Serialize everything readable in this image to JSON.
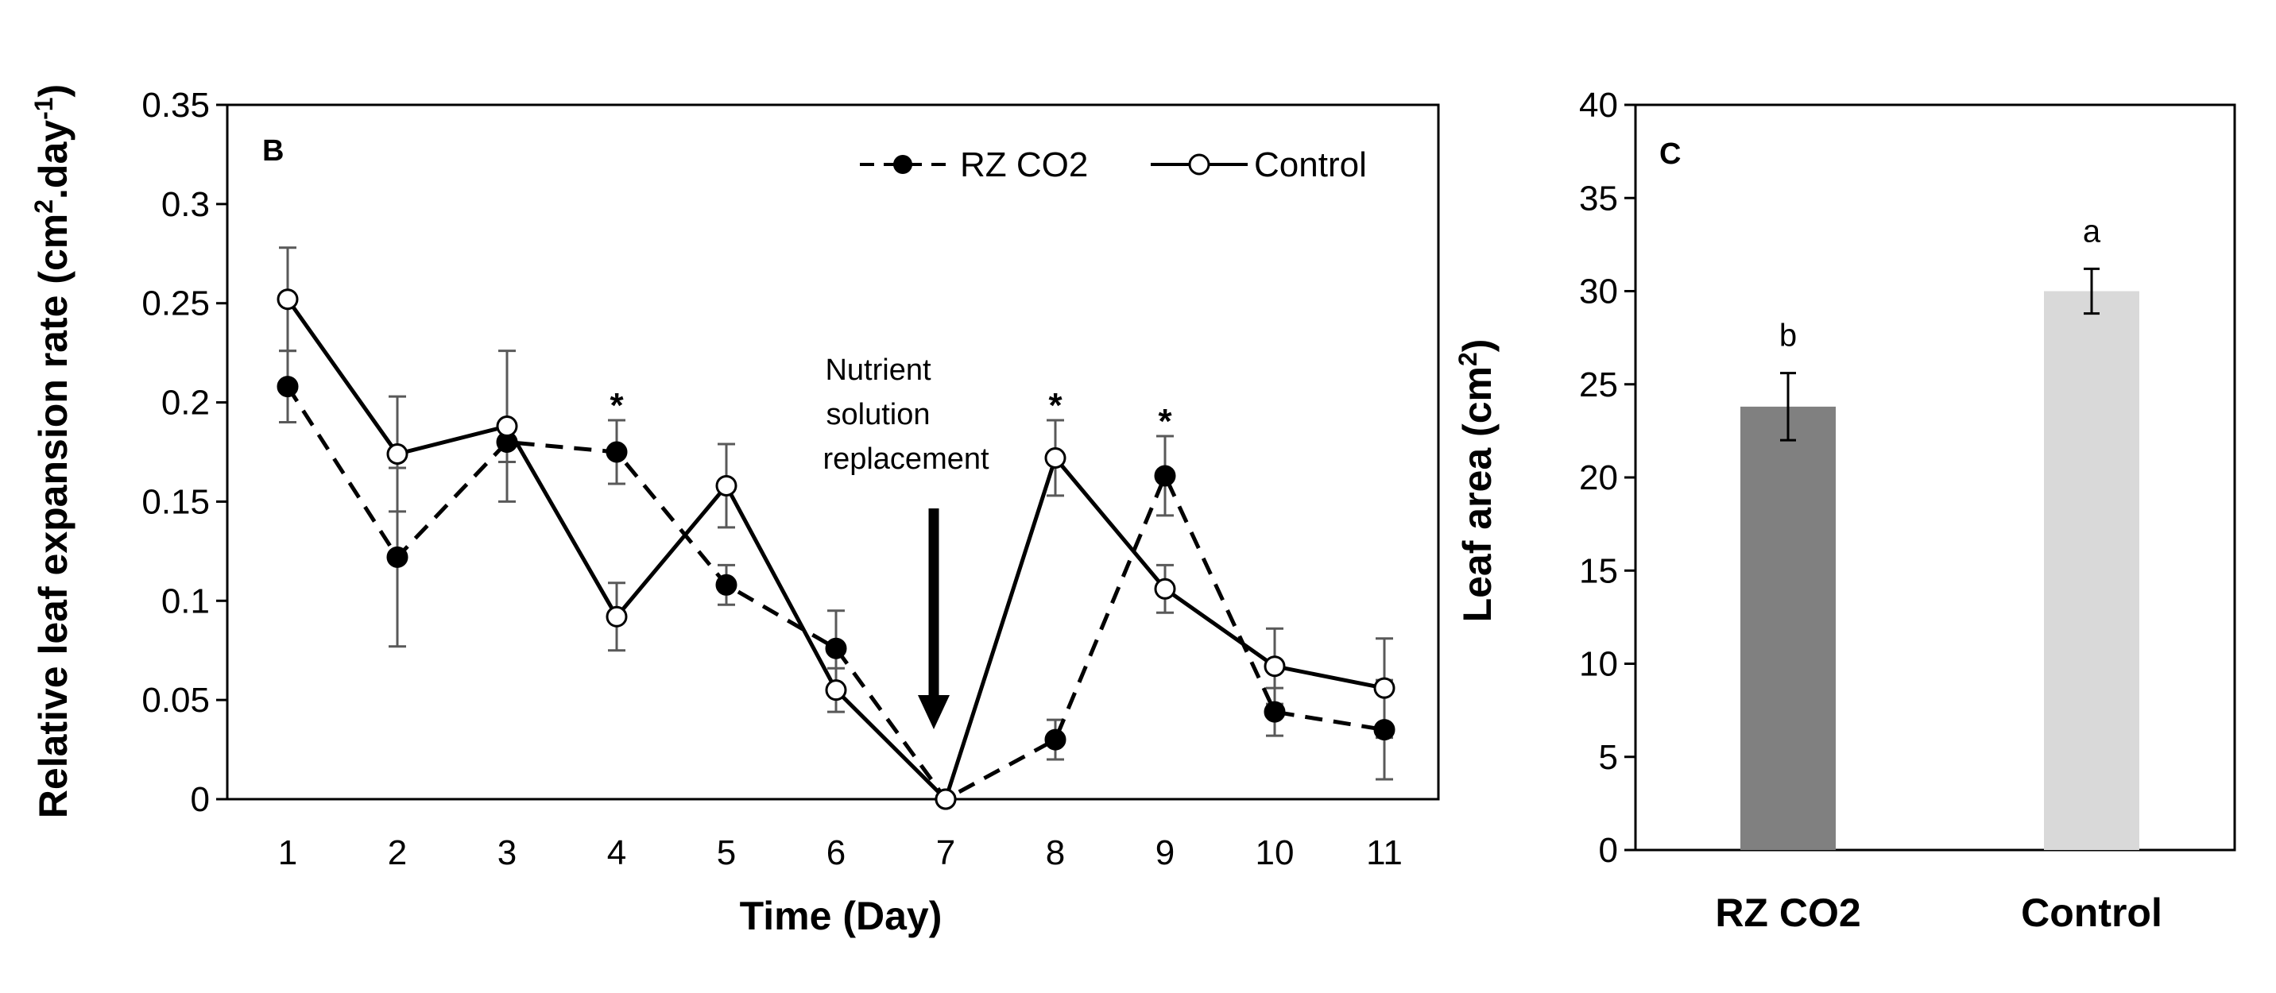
{
  "chart_data": [
    {
      "panel": "B",
      "type": "line",
      "ylabel": "Relative leaf expansion rate (cm2.day-1)",
      "ylabel_main": "Relative leaf expansion rate (cm",
      "ylabel_unit_mid": ".day",
      "ylabel_sup1": "2",
      "ylabel_sup2": "-1",
      "ylabel_close": ")",
      "xlabel": "Time (Day)",
      "ylim": [
        0,
        0.35
      ],
      "yticks": [
        "0",
        "0.05",
        "0.1",
        "0.15",
        "0.2",
        "0.25",
        "0.3",
        "0.35"
      ],
      "ytick_values": [
        0,
        0.05,
        0.1,
        0.15,
        0.2,
        0.25,
        0.3,
        0.35
      ],
      "x": [
        1,
        2,
        3,
        4,
        5,
        6,
        7,
        8,
        9,
        10,
        11
      ],
      "xticks": [
        "1",
        "2",
        "3",
        "4",
        "5",
        "6",
        "7",
        "8",
        "9",
        "10",
        "11"
      ],
      "legend_position": "top-right",
      "series": [
        {
          "name": "RZ CO2",
          "style": "dashed",
          "marker": "filled-circle",
          "values": [
            0.208,
            0.122,
            0.18,
            0.175,
            0.108,
            0.076,
            0.0,
            0.03,
            0.163,
            0.044,
            0.035
          ],
          "errors": [
            0.018,
            0.045,
            0.01,
            0.016,
            0.01,
            0.019,
            0.0,
            0.01,
            0.02,
            0.012,
            0.025
          ]
        },
        {
          "name": "Control",
          "style": "solid",
          "marker": "open-circle",
          "values": [
            0.252,
            0.174,
            0.188,
            0.092,
            0.158,
            0.055,
            0.0,
            0.172,
            0.106,
            0.067,
            0.056
          ],
          "errors": [
            0.026,
            0.029,
            0.038,
            0.017,
            0.021,
            0.011,
            0.0,
            0.019,
            0.012,
            0.019,
            0.025
          ]
        }
      ],
      "significance_days": [
        4,
        8,
        9
      ],
      "significance_mark": "*",
      "annotation": {
        "lines": [
          "Nutrient",
          "solution",
          "replacement"
        ],
        "arrow_day": 7
      }
    },
    {
      "panel": "C",
      "type": "bar",
      "ylabel": "Leaf area (cm2)",
      "ylabel_main": "Leaf area (cm",
      "ylabel_sup": "2",
      "ylabel_close": ")",
      "ylim": [
        0,
        40
      ],
      "yticks": [
        "0",
        "5",
        "10",
        "15",
        "20",
        "25",
        "30",
        "35",
        "40"
      ],
      "ytick_values": [
        0,
        5,
        10,
        15,
        20,
        25,
        30,
        35,
        40
      ],
      "categories": [
        "RZ CO2",
        "Control"
      ],
      "values": [
        23.8,
        30.0
      ],
      "errors": [
        1.8,
        1.2
      ],
      "letters": [
        "b",
        "a"
      ],
      "colors": [
        "#808080",
        "#d9d9d9"
      ]
    }
  ]
}
